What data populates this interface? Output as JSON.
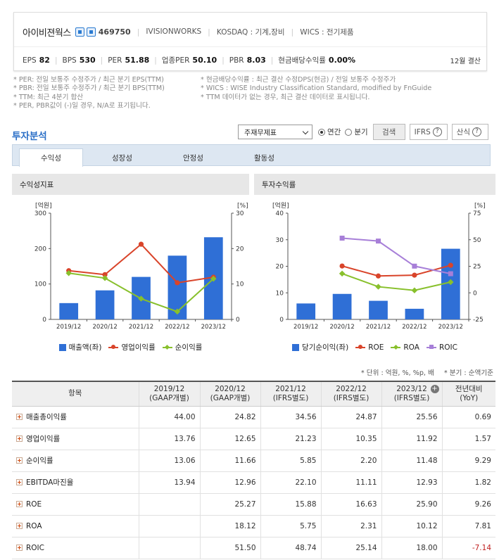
{
  "company": {
    "name": "아이비젼웍스",
    "code": "469750",
    "english": "IVISIONWORKS",
    "market": "KOSDAQ : 기계,장비",
    "wics": "WICS : 전기제품",
    "metrics": [
      {
        "label": "EPS",
        "value": "82"
      },
      {
        "label": "BPS",
        "value": "530"
      },
      {
        "label": "PER",
        "value": "51.88"
      },
      {
        "label": "업종PER",
        "value": "50.10"
      },
      {
        "label": "PBR",
        "value": "8.03"
      },
      {
        "label": "현금배당수익률",
        "value": "0.00%"
      }
    ],
    "settle": "12월 결산"
  },
  "notes": {
    "left": [
      "* PER: 전일 보통주 수정주가 / 최근 분기 EPS(TTM)",
      "* PBR: 전일 보통주 수정주가 / 최근 분기 BPS(TTM)",
      "* TTM: 최근 4분기 합산",
      "* PER, PBR값이 (-)일 경우, N/A로 표기됩니다."
    ],
    "right": [
      "* 현금배당수익률 : 최근 결산 수정DPS(현금) / 전일 보통주 수정주가",
      "* WICS : WISE Industry Classification Standard, modified by FnGuide",
      "* TTM 데이터가 없는 경우, 최근 결산 데이터로 표시됩니다."
    ]
  },
  "section_title": "투자분석",
  "controls": {
    "select_value": "주재무제표",
    "radio_annual": "연간",
    "radio_quarter": "분기",
    "search_button": "검색",
    "ifrs_button": "IFRS",
    "formula_button": "산식"
  },
  "tabs": [
    "수익성",
    "성장성",
    "안정성",
    "활동성"
  ],
  "panels": {
    "left_title": "수익성지표",
    "right_title": "투자수익률"
  },
  "chart_data": [
    {
      "type": "bar",
      "title": "수익성지표",
      "categories": [
        "2019/12",
        "2020/12",
        "2021/12",
        "2022/12",
        "2023/12"
      ],
      "left_axis": {
        "label": "[억원]",
        "ylim": [
          0,
          300
        ],
        "ticks": [
          "0",
          "100",
          "200",
          "300"
        ]
      },
      "right_axis": {
        "label": "[%]",
        "ylim": [
          0,
          30
        ],
        "ticks": [
          "0",
          "10",
          "20",
          "30"
        ]
      },
      "series": [
        {
          "name": "매출액(좌)",
          "kind": "bar",
          "axis": "left",
          "color": "#2f6fd6",
          "values": [
            46,
            82,
            120,
            180,
            232
          ]
        },
        {
          "name": "영업이익률",
          "kind": "line",
          "axis": "right",
          "color": "#d9442a",
          "marker": "circle",
          "values": [
            13.76,
            12.65,
            21.23,
            10.35,
            11.92
          ]
        },
        {
          "name": "순이익률",
          "kind": "line",
          "axis": "right",
          "color": "#88c02c",
          "marker": "diamond",
          "values": [
            13.06,
            11.66,
            5.85,
            2.2,
            11.48
          ]
        }
      ],
      "grid": false,
      "legend": "bottom"
    },
    {
      "type": "bar",
      "title": "투자수익률",
      "categories": [
        "2019/12",
        "2020/12",
        "2021/12",
        "2022/12",
        "2023/12"
      ],
      "left_axis": {
        "label": "[억원]",
        "ylim": [
          0,
          40
        ],
        "ticks": [
          "0",
          "10",
          "20",
          "30",
          "40"
        ]
      },
      "right_axis": {
        "label": "[%]",
        "ylim": [
          -25,
          75
        ],
        "ticks": [
          "-25",
          "0",
          "25",
          "50",
          "75"
        ]
      },
      "series": [
        {
          "name": "당기순이익(좌)",
          "kind": "bar",
          "axis": "left",
          "color": "#2f6fd6",
          "values": [
            6,
            9.6,
            7,
            4,
            26.6
          ]
        },
        {
          "name": "ROE",
          "kind": "line",
          "axis": "right",
          "color": "#d9442a",
          "marker": "circle",
          "values": [
            null,
            25.27,
            15.88,
            16.63,
            25.9
          ]
        },
        {
          "name": "ROA",
          "kind": "line",
          "axis": "right",
          "color": "#88c02c",
          "marker": "diamond",
          "values": [
            null,
            18.12,
            5.75,
            2.31,
            10.12
          ]
        },
        {
          "name": "ROIC",
          "kind": "line",
          "axis": "right",
          "color": "#a77fd8",
          "marker": "square",
          "values": [
            null,
            51.5,
            48.74,
            25.14,
            18.0
          ]
        }
      ],
      "grid": false,
      "legend": "bottom"
    }
  ],
  "units": {
    "left": "* 단위 : 억원, %, %p, 배",
    "right": "* 분기 : 순액기준"
  },
  "table": {
    "headers": [
      [
        "항목"
      ],
      [
        "2019/12",
        "(GAAP개별)"
      ],
      [
        "2020/12",
        "(GAAP개별)"
      ],
      [
        "2021/12",
        "(IFRS별도)"
      ],
      [
        "2022/12",
        "(IFRS별도)"
      ],
      [
        "2023/12",
        "(IFRS별도)"
      ],
      [
        "전년대비",
        "(YoY)"
      ]
    ],
    "rows": [
      {
        "label": "매출총이익률",
        "values": [
          "44.00",
          "24.82",
          "34.56",
          "24.87",
          "25.56",
          "0.69"
        ]
      },
      {
        "label": "영업이익률",
        "values": [
          "13.76",
          "12.65",
          "21.23",
          "10.35",
          "11.92",
          "1.57"
        ]
      },
      {
        "label": "순이익률",
        "values": [
          "13.06",
          "11.66",
          "5.85",
          "2.20",
          "11.48",
          "9.29"
        ]
      },
      {
        "label": "EBITDA마진율",
        "values": [
          "13.94",
          "12.96",
          "22.10",
          "11.11",
          "12.93",
          "1.82"
        ]
      },
      {
        "label": "ROE",
        "values": [
          "",
          "25.27",
          "15.88",
          "16.63",
          "25.90",
          "9.26"
        ]
      },
      {
        "label": "ROA",
        "values": [
          "",
          "18.12",
          "5.75",
          "2.31",
          "10.12",
          "7.81"
        ]
      },
      {
        "label": "ROIC",
        "values": [
          "",
          "51.50",
          "48.74",
          "25.14",
          "18.00",
          "-7.14"
        ]
      }
    ]
  }
}
